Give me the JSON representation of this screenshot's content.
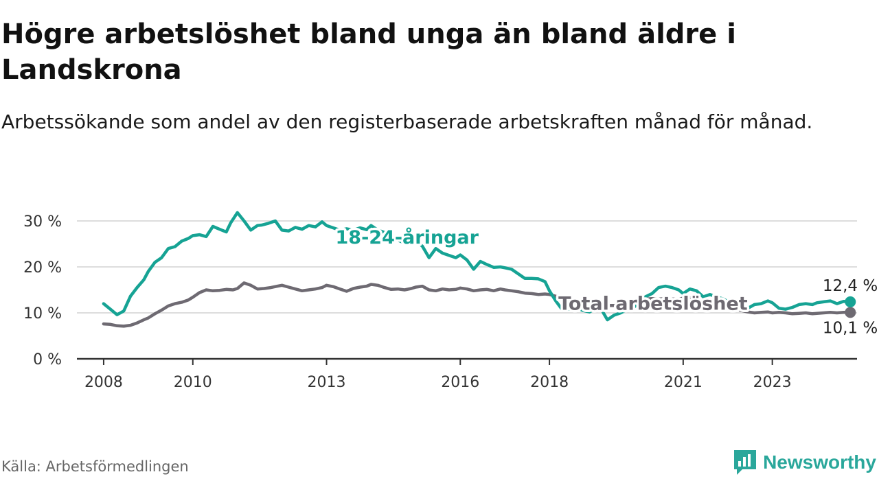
{
  "header": {
    "title": "Högre arbetslöshet bland unga än bland äldre i Landskrona",
    "subtitle": "Arbetssökande som andel av den registerbaserade arbetskraften månad för månad."
  },
  "footer": {
    "source": "Källa: Arbetsförmedlingen",
    "brand": "Newsworthy",
    "brand_icon": "newsworthy-logo-icon"
  },
  "colors": {
    "youth": "#16a394",
    "total": "#6e6a72",
    "grid": "#dddddd",
    "axis": "#333333",
    "brand": "#2aa79b"
  },
  "chart_data": {
    "type": "line",
    "title": "Högre arbetslöshet bland unga än bland äldre i Landskrona",
    "xlabel": "",
    "ylabel": "",
    "xlim": [
      2007.4,
      2024.9
    ],
    "ylim": [
      0,
      30
    ],
    "y_ticks": [
      0,
      10,
      20,
      30
    ],
    "y_tick_labels": [
      "0 %",
      "10 %",
      "20 %",
      "30 %"
    ],
    "x_ticks": [
      2008,
      2010,
      2013,
      2016,
      2018,
      2021,
      2023
    ],
    "x_tick_labels": [
      "2008",
      "2010",
      "2013",
      "2016",
      "2018",
      "2021",
      "2023"
    ],
    "grid": true,
    "series": [
      {
        "name": "18-24-åringar",
        "label": "18-24-åringar",
        "end_label": "12,4 %",
        "color_key": "youth",
        "x": [
          2008.0,
          2008.15,
          2008.3,
          2008.45,
          2008.6,
          2008.75,
          2008.9,
          2009.0,
          2009.15,
          2009.3,
          2009.45,
          2009.6,
          2009.75,
          2009.9,
          2010.0,
          2010.15,
          2010.3,
          2010.45,
          2010.6,
          2010.75,
          2010.85,
          2011.0,
          2011.15,
          2011.3,
          2011.45,
          2011.55,
          2011.7,
          2011.85,
          2012.0,
          2012.15,
          2012.3,
          2012.45,
          2012.6,
          2012.75,
          2012.9,
          2013.0,
          2013.15,
          2013.3,
          2013.45,
          2013.6,
          2013.75,
          2013.9,
          2014.0,
          2014.15,
          2014.3,
          2014.45,
          2014.6,
          2014.75,
          2014.9,
          2015.0,
          2015.15,
          2015.3,
          2015.45,
          2015.6,
          2015.75,
          2015.9,
          2016.0,
          2016.15,
          2016.3,
          2016.45,
          2016.6,
          2016.75,
          2016.9,
          2017.0,
          2017.15,
          2017.3,
          2017.45,
          2017.6,
          2017.75,
          2017.9,
          2018.0,
          2018.15,
          2018.3,
          2018.45,
          2018.6,
          2018.75,
          2018.9,
          2019.0,
          2019.15,
          2019.3,
          2019.45,
          2019.6,
          2019.75,
          2019.9,
          2020.0,
          2020.15,
          2020.3,
          2020.45,
          2020.6,
          2020.75,
          2020.9,
          2021.0,
          2021.15,
          2021.3,
          2021.45,
          2021.6,
          2021.75,
          2021.9,
          2022.0,
          2022.15,
          2022.3,
          2022.45,
          2022.6,
          2022.75,
          2022.9,
          2023.0,
          2023.15,
          2023.3,
          2023.45,
          2023.6,
          2023.75,
          2023.9,
          2024.0,
          2024.15,
          2024.3,
          2024.45,
          2024.6,
          2024.75
        ],
        "values": [
          12.0,
          10.8,
          9.6,
          10.4,
          13.6,
          15.5,
          17.2,
          19.0,
          21.0,
          22.0,
          24.0,
          24.4,
          25.6,
          26.2,
          26.8,
          27.0,
          26.6,
          28.8,
          28.2,
          27.6,
          29.6,
          31.8,
          30.0,
          28.0,
          29.0,
          29.1,
          29.5,
          30.0,
          28.0,
          27.8,
          28.6,
          28.2,
          29.0,
          28.7,
          29.8,
          29.0,
          28.5,
          28.0,
          28.3,
          28.0,
          28.5,
          28.1,
          29.0,
          28.0,
          27.5,
          27.0,
          25.8,
          25.2,
          26.0,
          25.8,
          24.5,
          22.0,
          24.0,
          23.0,
          22.5,
          22.0,
          22.6,
          21.5,
          19.5,
          21.2,
          20.5,
          19.9,
          20.0,
          19.8,
          19.5,
          18.5,
          17.5,
          17.5,
          17.4,
          16.8,
          14.8,
          12.5,
          10.5,
          10.8,
          11.2,
          10.5,
          10.2,
          10.8,
          11.0,
          8.5,
          9.5,
          10.0,
          10.8,
          11.3,
          12.0,
          13.5,
          14.2,
          15.5,
          15.8,
          15.5,
          15.0,
          14.2,
          15.2,
          14.8,
          13.5,
          14.0,
          13.5,
          13.0,
          12.5,
          11.8,
          11.5,
          11.0,
          11.8,
          12.0,
          12.6,
          12.2,
          11.0,
          10.8,
          11.2,
          11.8,
          12.0,
          11.8,
          12.2,
          12.4,
          12.6,
          12.0,
          12.5,
          12.4
        ]
      },
      {
        "name": "Total arbetslöshet",
        "label": "Total arbetslöshet",
        "end_label": "10,1 %",
        "color_key": "total",
        "x": [
          2008.0,
          2008.15,
          2008.3,
          2008.45,
          2008.6,
          2008.75,
          2008.9,
          2009.0,
          2009.15,
          2009.3,
          2009.45,
          2009.6,
          2009.75,
          2009.9,
          2010.0,
          2010.15,
          2010.3,
          2010.45,
          2010.6,
          2010.75,
          2010.9,
          2011.0,
          2011.15,
          2011.3,
          2011.45,
          2011.6,
          2011.75,
          2011.9,
          2012.0,
          2012.15,
          2012.3,
          2012.45,
          2012.6,
          2012.75,
          2012.9,
          2013.0,
          2013.15,
          2013.3,
          2013.45,
          2013.6,
          2013.75,
          2013.9,
          2014.0,
          2014.15,
          2014.3,
          2014.45,
          2014.6,
          2014.75,
          2014.9,
          2015.0,
          2015.15,
          2015.3,
          2015.45,
          2015.6,
          2015.75,
          2015.9,
          2016.0,
          2016.15,
          2016.3,
          2016.45,
          2016.6,
          2016.75,
          2016.9,
          2017.0,
          2017.15,
          2017.3,
          2017.45,
          2017.6,
          2017.75,
          2017.9,
          2018.0,
          2018.15,
          2018.3,
          2018.45,
          2018.6,
          2018.75,
          2018.9,
          2019.0,
          2019.15,
          2019.3,
          2019.45,
          2019.6,
          2019.75,
          2019.9,
          2020.0,
          2020.15,
          2020.3,
          2020.45,
          2020.6,
          2020.75,
          2020.9,
          2021.0,
          2021.15,
          2021.3,
          2021.45,
          2021.6,
          2021.75,
          2021.9,
          2022.0,
          2022.15,
          2022.3,
          2022.45,
          2022.6,
          2022.75,
          2022.9,
          2023.0,
          2023.15,
          2023.3,
          2023.45,
          2023.6,
          2023.75,
          2023.9,
          2024.0,
          2024.15,
          2024.3,
          2024.45,
          2024.6,
          2024.75
        ],
        "values": [
          7.6,
          7.5,
          7.2,
          7.1,
          7.3,
          7.8,
          8.5,
          8.9,
          9.8,
          10.6,
          11.5,
          12.0,
          12.3,
          12.8,
          13.4,
          14.4,
          15.0,
          14.8,
          14.9,
          15.1,
          15.0,
          15.3,
          16.5,
          16.0,
          15.2,
          15.3,
          15.5,
          15.8,
          16.0,
          15.6,
          15.2,
          14.8,
          15.0,
          15.2,
          15.5,
          16.0,
          15.7,
          15.2,
          14.7,
          15.3,
          15.6,
          15.8,
          16.2,
          16.0,
          15.5,
          15.1,
          15.2,
          15.0,
          15.3,
          15.6,
          15.8,
          15.0,
          14.8,
          15.2,
          15.0,
          15.1,
          15.4,
          15.2,
          14.8,
          15.0,
          15.1,
          14.8,
          15.2,
          15.0,
          14.8,
          14.6,
          14.3,
          14.2,
          14.0,
          14.1,
          14.0,
          13.6,
          13.0,
          12.8,
          12.6,
          12.4,
          12.2,
          12.0,
          11.8,
          11.6,
          11.6,
          11.8,
          12.1,
          12.5,
          12.8,
          13.0,
          13.1,
          13.0,
          13.1,
          13.0,
          13.0,
          13.2,
          13.3,
          12.8,
          12.2,
          11.8,
          11.6,
          11.4,
          11.1,
          11.0,
          10.5,
          10.2,
          10.0,
          10.1,
          10.2,
          10.0,
          10.1,
          10.0,
          9.8,
          9.9,
          10.0,
          9.8,
          9.9,
          10.0,
          10.1,
          10.0,
          10.1,
          10.1
        ]
      }
    ],
    "annotations": [
      {
        "text": "18-24-åringar",
        "series": "18-24-åringar",
        "x": 2013.2,
        "y": 26.4
      },
      {
        "text": "Total arbetslöshet",
        "series": "Total arbetslöshet",
        "x": 2018.2,
        "y": 12.0
      }
    ]
  }
}
